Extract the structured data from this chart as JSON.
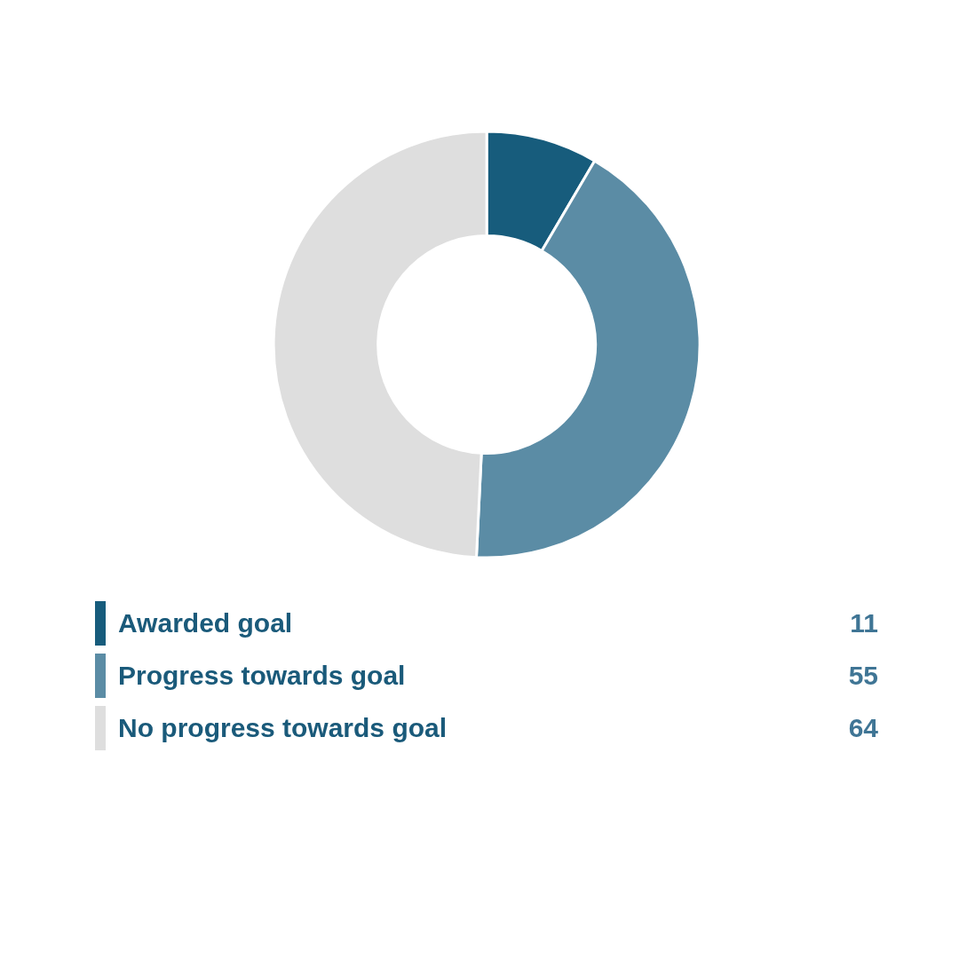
{
  "chart_data": {
    "type": "donut",
    "categories": [
      "Awarded goal",
      "Progress towards goal",
      "No progress towards goal"
    ],
    "values": [
      11,
      55,
      64
    ],
    "colors": [
      "#175c7c",
      "#5b8ca5",
      "#dedede"
    ],
    "data_labels": true,
    "legend": "bottom"
  }
}
